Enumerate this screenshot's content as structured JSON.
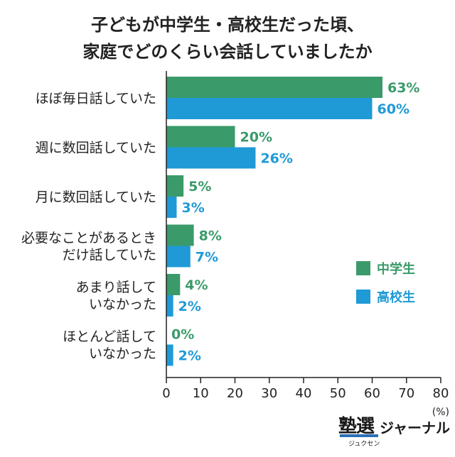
{
  "title_lines": [
    "子どもが中学生・高校生だった頃、",
    "家庭でどのくらい会話していましたか"
  ],
  "brand": {
    "logo_text": "塾選",
    "logo_kana": "ジュクセン",
    "journal": "ジャーナル"
  },
  "chart_data": {
    "type": "bar",
    "orientation": "horizontal",
    "title": "子どもが中学生・高校生だった頃、家庭でどのくらい会話していましたか",
    "categories": [
      [
        "ほぼ毎日話していた"
      ],
      [
        "週に数回話していた"
      ],
      [
        "月に数回話していた"
      ],
      [
        "必要なことがあるとき",
        "だけ話していた"
      ],
      [
        "あまり話して",
        "いなかった"
      ],
      [
        "ほとんど話して",
        "いなかった"
      ]
    ],
    "series": [
      {
        "name": "中学生",
        "color": "#3a9a6a",
        "values": [
          63,
          20,
          5,
          8,
          4,
          0
        ],
        "labels": [
          "63%",
          "20%",
          "5%",
          "8%",
          "4%",
          "0%"
        ]
      },
      {
        "name": "高校生",
        "color": "#1f9ad6",
        "values": [
          60,
          26,
          3,
          7,
          2,
          2
        ],
        "labels": [
          "60%",
          "26%",
          "3%",
          "7%",
          "2%",
          "2%"
        ]
      }
    ],
    "xlim": [
      0,
      80
    ],
    "xticks": [
      "0",
      "10",
      "20",
      "30",
      "40",
      "50",
      "60",
      "70",
      "80"
    ],
    "xunit": "(%)",
    "legend_position": "right"
  }
}
